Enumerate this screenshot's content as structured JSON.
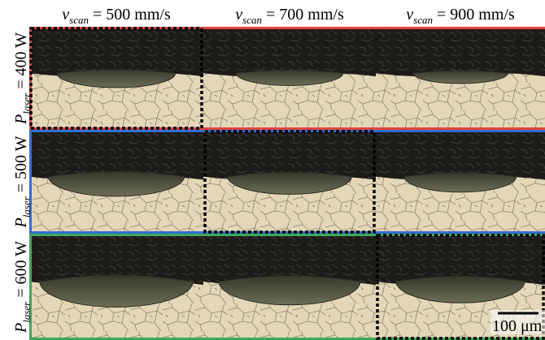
{
  "columns": [
    {
      "symbol": "v",
      "subscript": "scan",
      "text": " = 500 mm/s"
    },
    {
      "symbol": "v",
      "subscript": "scan",
      "text": " = 700 mm/s"
    },
    {
      "symbol": "v",
      "subscript": "scan",
      "text": " = 900 mm/s"
    }
  ],
  "rows": [
    {
      "symbol": "P",
      "subscript": "laser",
      "text": " = 400 W"
    },
    {
      "symbol": "P",
      "subscript": "laser",
      "text": " = 500 W"
    },
    {
      "symbol": "P",
      "subscript": "laser",
      "text": " = 600 W"
    }
  ],
  "scale_bar": {
    "label": "100 μm"
  }
}
